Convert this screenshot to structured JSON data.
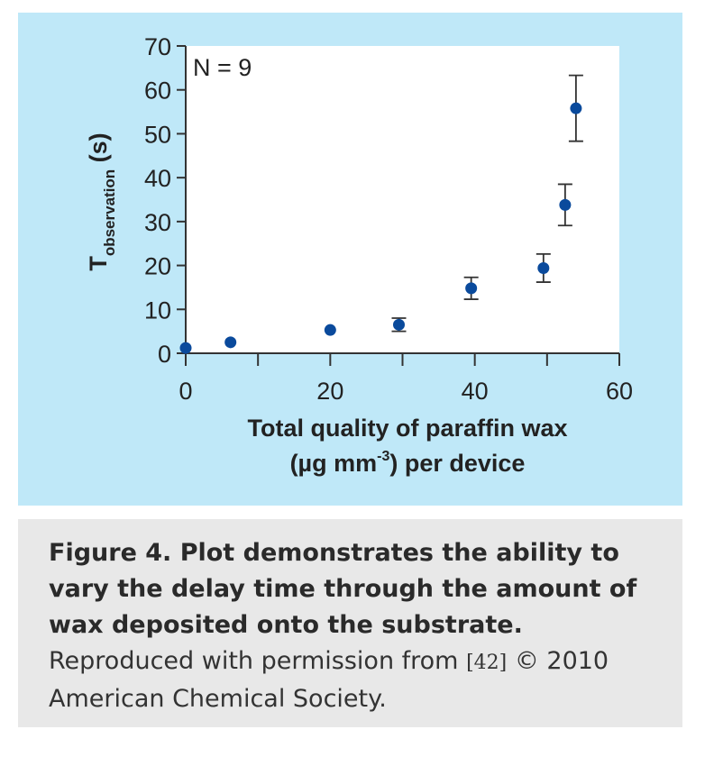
{
  "chart_data": {
    "type": "scatter",
    "annotation": "N = 9",
    "xlabel_line1": "Total quality of paraffin wax",
    "xlabel_line2_pre": "(µg mm",
    "xlabel_line2_sup": "-3",
    "xlabel_line2_post": ") per device",
    "ylabel_main": "T",
    "ylabel_sub": "observation",
    "ylabel_unit": " (s)",
    "xlim": [
      0,
      60
    ],
    "ylim": [
      0,
      70
    ],
    "x_ticks": [
      0,
      20,
      40,
      60
    ],
    "x_minor_ticks": [
      10,
      30,
      50
    ],
    "y_ticks": [
      0,
      10,
      20,
      30,
      40,
      50,
      60,
      70
    ],
    "marker_color": "#0a4a9c",
    "points": [
      {
        "x": 0,
        "y": 1.2,
        "err": 0
      },
      {
        "x": 6.2,
        "y": 2.5,
        "err": 0
      },
      {
        "x": 20,
        "y": 5.3,
        "err": 0
      },
      {
        "x": 29.5,
        "y": 6.5,
        "err": 1.5
      },
      {
        "x": 39.5,
        "y": 14.8,
        "err": 2.5
      },
      {
        "x": 49.5,
        "y": 19.4,
        "err": 3.2
      },
      {
        "x": 52.5,
        "y": 33.8,
        "err": 4.7
      },
      {
        "x": 54,
        "y": 55.8,
        "err": 7.5
      }
    ]
  },
  "caption": {
    "title": "Figure 4. Plot demonstrates the ability to vary the delay time through the amount of wax deposited onto the substrate.",
    "credit_pre": "Reproduced with permission from ",
    "credit_ref": "[42]",
    "credit_post": " © 2010 American Chemical Society."
  }
}
